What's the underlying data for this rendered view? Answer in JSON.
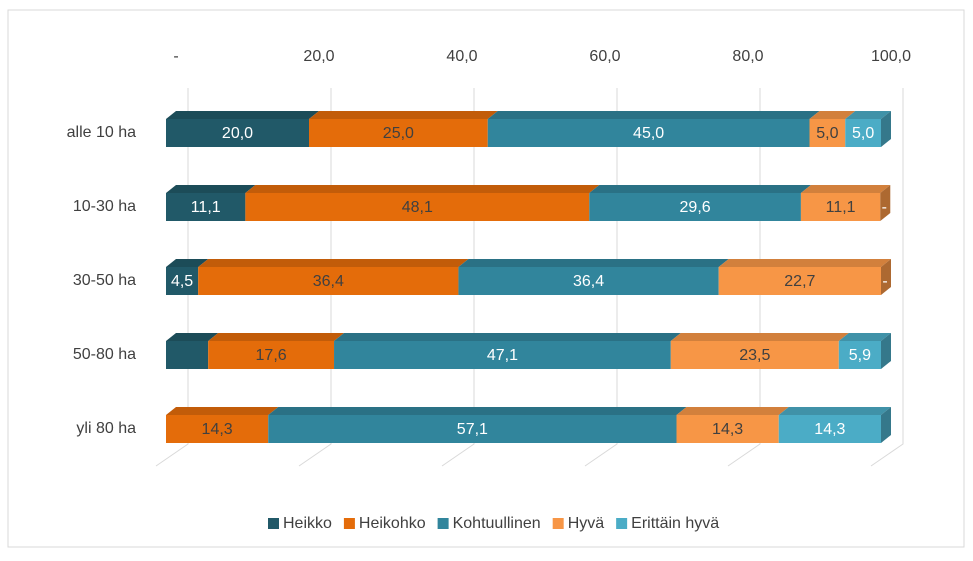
{
  "chart_data": {
    "type": "bar3d_stacked_horizontal",
    "categories": [
      "alle 10 ha",
      "10-30 ha",
      "30-50 ha",
      "50-80 ha",
      "yli 80 ha"
    ],
    "series": [
      {
        "name": "Heikko",
        "color": "#215968",
        "values": [
          20.0,
          11.1,
          4.5,
          5.9,
          0
        ],
        "value_labels": [
          "20,0",
          "11,1",
          "4,5",
          null,
          null
        ]
      },
      {
        "name": "Heikohko",
        "color": "#e46c0a",
        "values": [
          25.0,
          48.1,
          36.4,
          17.6,
          14.3
        ],
        "value_labels": [
          "25,0",
          "48,1",
          "36,4",
          "17,6",
          "14,3"
        ]
      },
      {
        "name": "Kohtuullinen",
        "color": "#31859c",
        "values": [
          45.0,
          29.6,
          36.4,
          47.1,
          57.1
        ],
        "value_labels": [
          "45,0",
          "29,6",
          "36,4",
          "47,1",
          "57,1"
        ]
      },
      {
        "name": "Hyvä",
        "color": "#f79646",
        "values": [
          5.0,
          11.1,
          22.7,
          23.5,
          14.3
        ],
        "value_labels": [
          "5,0",
          "11,1",
          "22,7",
          "23,5",
          "14,3"
        ]
      },
      {
        "name": "Erittäin hyvä",
        "color": "#4bacc6",
        "values": [
          5.0,
          0,
          0,
          5.9,
          14.3
        ],
        "value_labels": [
          "5,0",
          "-",
          "-",
          "5,9",
          "14,3"
        ]
      }
    ],
    "xlim": [
      0,
      100
    ],
    "xticks": [
      {
        "value": 0,
        "label": "-"
      },
      {
        "value": 20,
        "label": "20,0"
      },
      {
        "value": 40,
        "label": "40,0"
      },
      {
        "value": 60,
        "label": "60,0"
      },
      {
        "value": 80,
        "label": "80,0"
      },
      {
        "value": 100,
        "label": "100,0"
      }
    ],
    "grid": true,
    "legend": "bottom"
  }
}
